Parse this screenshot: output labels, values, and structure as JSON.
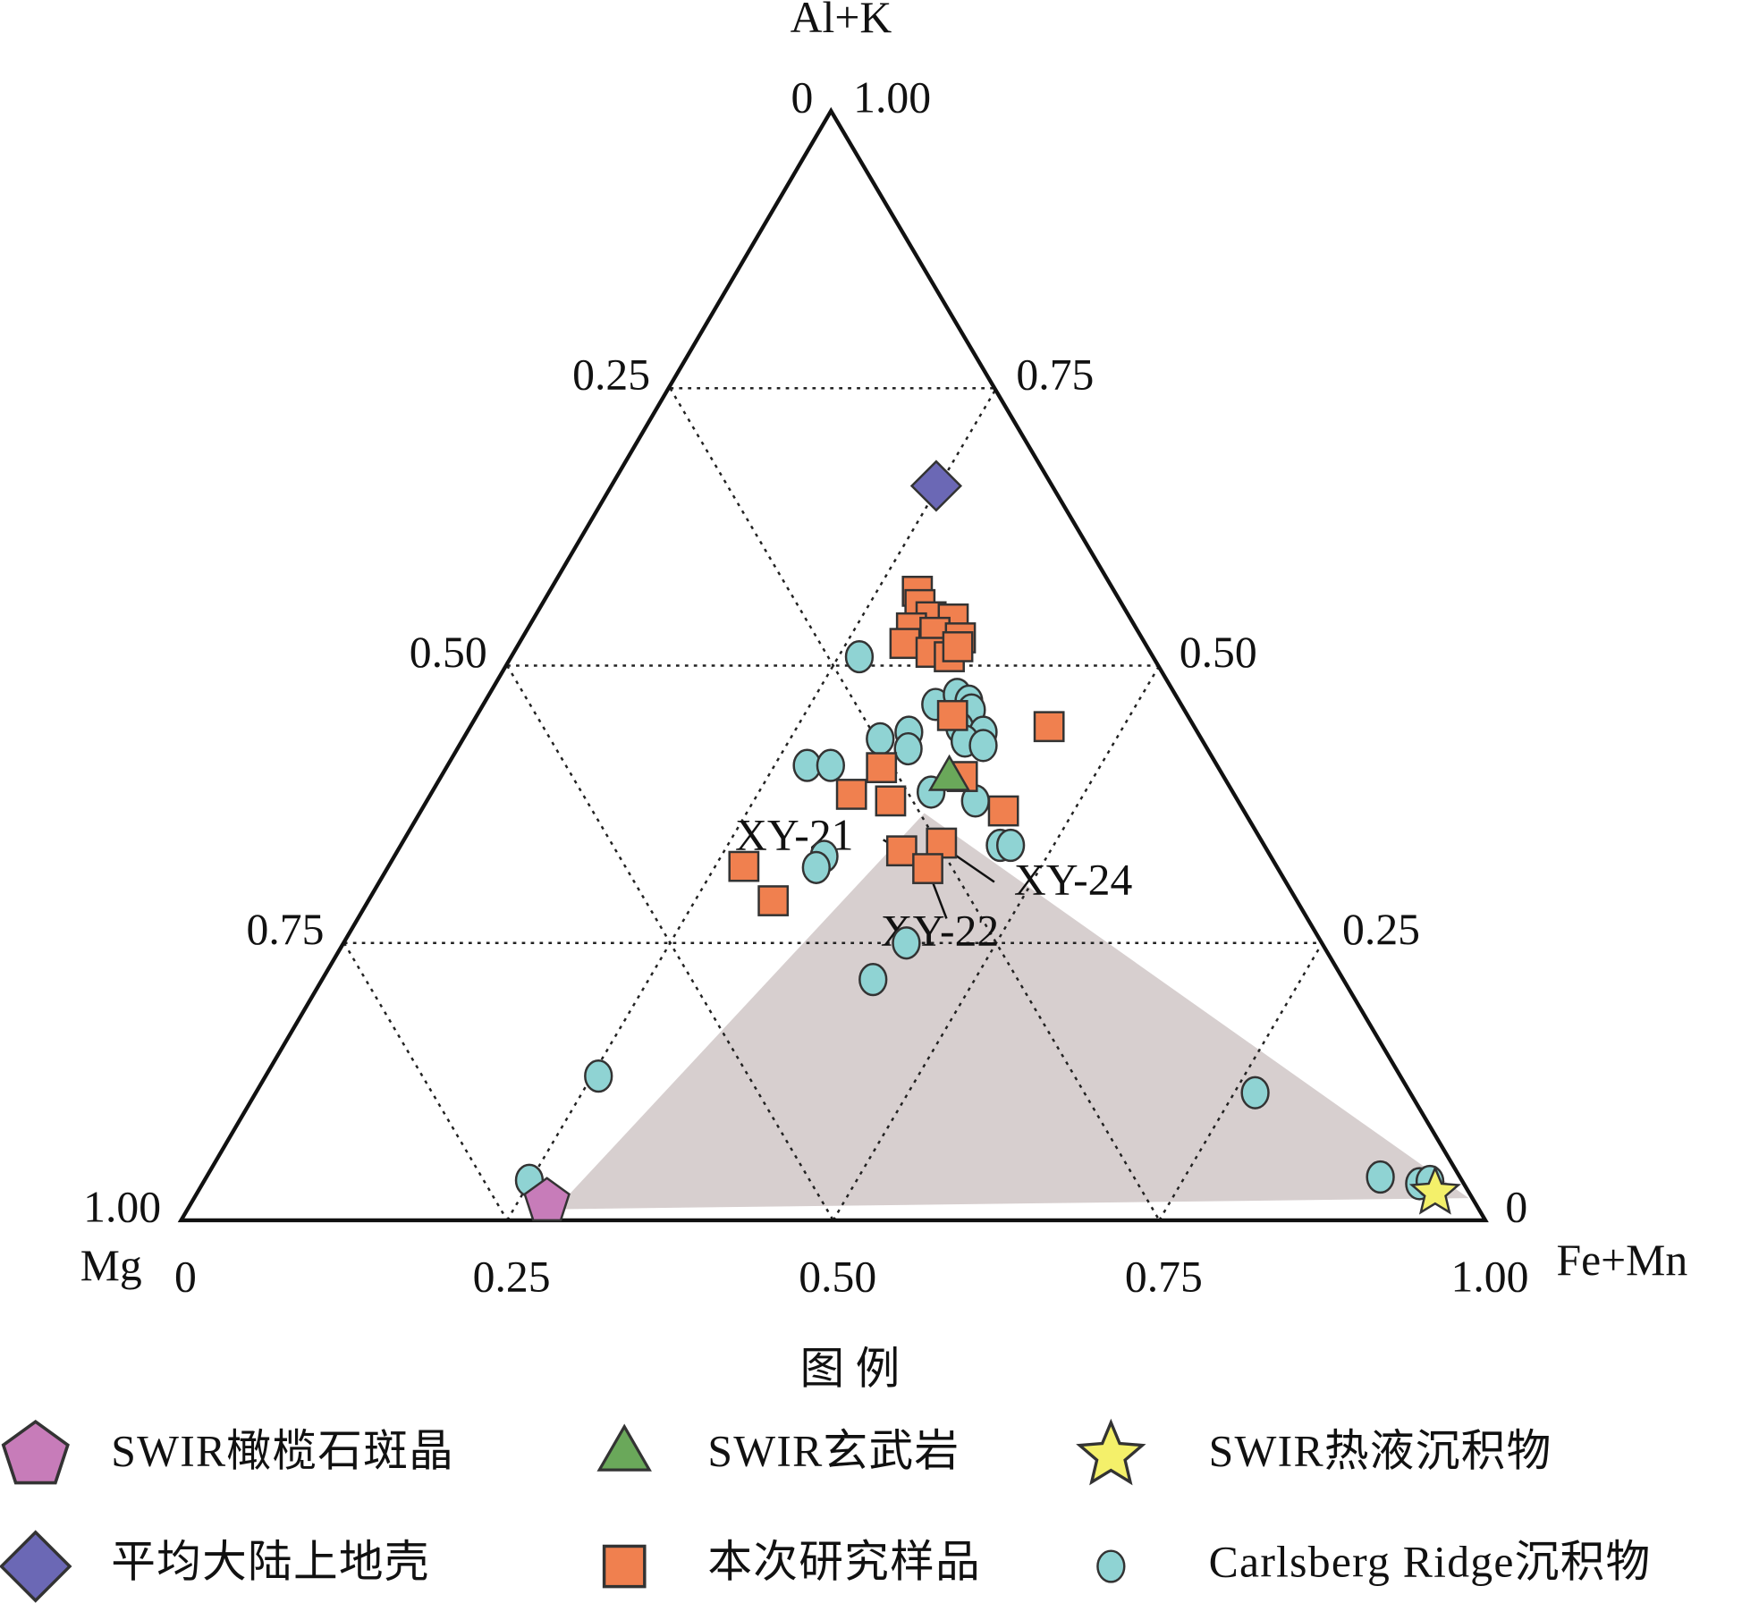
{
  "chart_data": {
    "type": "ternary",
    "axes": {
      "top": "Al+K",
      "left": "Mg",
      "right": "Fe+Mn"
    },
    "fe_mn_ticks": [
      0,
      0.25,
      {
        "value": 0.5,
        "label": "0.50"
      },
      0.75,
      {
        "value": 1,
        "label": "1.00"
      }
    ],
    "mg_ticks": [
      0,
      0.25,
      {
        "value": 0.5,
        "label": "0.50"
      },
      0.75,
      {
        "value": 1,
        "label": "1.00"
      }
    ],
    "al_k_ticks": [
      0,
      0.25,
      {
        "value": 0.5,
        "label": "0.50"
      },
      0.75,
      {
        "value": 1,
        "label": "1.00"
      }
    ],
    "grid": true,
    "legend_title": "图 例",
    "annotations": [
      "XY-21",
      "XY-24",
      "XY-22"
    ],
    "series": [
      {
        "name": "SWIR橄榄石斑晶",
        "marker": "pentagon",
        "color": "#c77cb9",
        "al_k": [
          0.017
        ],
        "fe_mn": [
          0.272
        ]
      },
      {
        "name": "SWIR玄武岩",
        "marker": "triangle",
        "color": "#6aa85a",
        "al_k": [
          0.398
        ],
        "fe_mn": [
          0.39
        ]
      },
      {
        "name": "SWIR热液沉积物",
        "marker": "star",
        "color": "#f4f06a",
        "al_k": [
          0.025
        ],
        "fe_mn": [
          0.949
        ]
      },
      {
        "name": "平均大陆上地壳",
        "marker": "diamond",
        "color": "#6b68b5",
        "al_k": [
          0.662
        ],
        "fe_mn": [
          0.248
        ]
      },
      {
        "name": "本次研究样品",
        "marker": "square",
        "color": "#f0804f",
        "al_k": [
          0.567,
          0.555,
          0.544,
          0.542,
          0.534,
          0.53,
          0.525,
          0.52,
          0.512,
          0.508,
          0.517,
          0.445,
          0.408,
          0.4,
          0.384,
          0.378,
          0.369,
          0.34,
          0.333,
          0.319,
          0.317,
          0.288,
          0.455
        ],
        "fe_mn": [
          0.281,
          0.289,
          0.303,
          0.321,
          0.293,
          0.313,
          0.335,
          0.295,
          0.319,
          0.335,
          0.337,
          0.443,
          0.333,
          0.399,
          0.322,
          0.355,
          0.446,
          0.413,
          0.386,
          0.272,
          0.414,
          0.31,
          0.364
        ]
      },
      {
        "name": "Carlsberg Ridge沉积物",
        "marker": "circle",
        "color": "#8fd3d3",
        "al_k": [
          0.508,
          0.522,
          0.465,
          0.474,
          0.468,
          0.46,
          0.444,
          0.44,
          0.434,
          0.44,
          0.425,
          0.432,
          0.428,
          0.41,
          0.41,
          0.386,
          0.378,
          0.338,
          0.338,
          0.328,
          0.318,
          0.25,
          0.217,
          0.13,
          0.115,
          0.039,
          0.033,
          0.035,
          0.036
        ],
        "fe_mn": [
          0.266,
          0.314,
          0.346,
          0.358,
          0.37,
          0.376,
          0.375,
          0.395,
          0.319,
          0.338,
          0.345,
          0.385,
          0.401,
          0.275,
          0.293,
          0.382,
          0.42,
          0.459,
          0.467,
          0.329,
          0.328,
          0.431,
          0.422,
          0.255,
          0.766,
          0.9,
          0.933,
          0.94,
          0.249
        ]
      }
    ]
  }
}
